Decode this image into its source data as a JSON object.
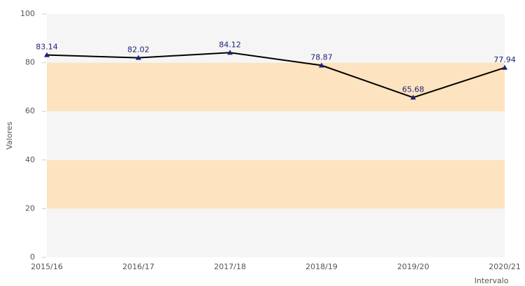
{
  "chart_data": {
    "type": "line",
    "categories": [
      "2015/16",
      "2016/17",
      "2017/18",
      "2018/19",
      "2019/20",
      "2020/21"
    ],
    "series": [
      {
        "color": "#000000",
        "marker_color": "#1f1f7a",
        "values": [
          83.14,
          82.02,
          84.12,
          78.87,
          65.68,
          77.94
        ]
      }
    ],
    "ylim": [
      0,
      100
    ],
    "yticks": [
      0,
      20,
      40,
      60,
      80,
      100
    ],
    "ylabel": "Valores",
    "xlabel": "Intervalo",
    "bands": [
      {
        "from": 0,
        "to": 20,
        "color": "#f5f5f5"
      },
      {
        "from": 20,
        "to": 40,
        "color": "#fde3bf"
      },
      {
        "from": 40,
        "to": 60,
        "color": "#f5f5f5"
      },
      {
        "from": 60,
        "to": 80,
        "color": "#fde3bf"
      },
      {
        "from": 80,
        "to": 100,
        "color": "#f5f5f5"
      }
    ]
  }
}
